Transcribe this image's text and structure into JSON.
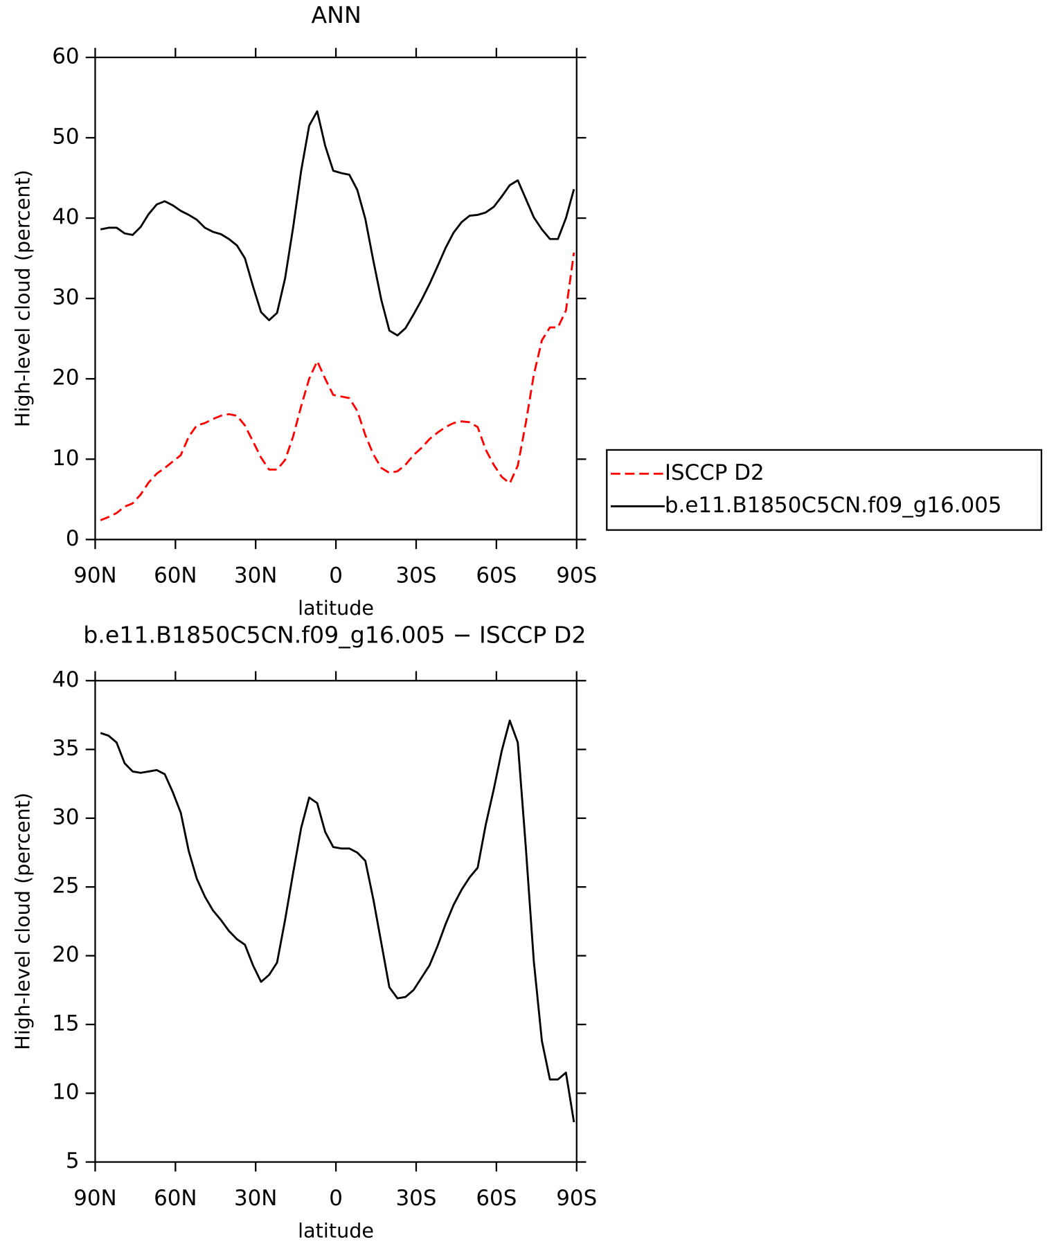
{
  "chart_data": [
    {
      "type": "line",
      "title": "ANN",
      "y_label": "High-level cloud (percent)",
      "x_label": "latitude",
      "x": [
        88,
        85,
        82,
        79,
        76,
        73,
        70,
        67,
        64,
        61,
        58,
        55,
        52,
        49,
        46,
        43,
        40,
        37,
        34,
        31,
        28,
        25,
        22,
        19,
        16,
        13,
        10,
        7,
        4,
        1,
        -2,
        -5,
        -8,
        -11,
        -14,
        -17,
        -20,
        -23,
        -26,
        -29,
        -32,
        -35,
        -38,
        -41,
        -44,
        -47,
        -50,
        -53,
        -56,
        -59,
        -62,
        -65,
        -68,
        -71,
        -74,
        -77,
        -80,
        -83,
        -86,
        -89
      ],
      "series": [
        {
          "name": "ISCCP D2",
          "color": "#ff0000",
          "style": "dashed",
          "values": [
            2.4,
            2.8,
            3.3,
            4.1,
            4.5,
            5.6,
            7.1,
            8.2,
            8.9,
            9.7,
            10.5,
            12.8,
            14.2,
            14.5,
            15.0,
            15.4,
            15.6,
            15.4,
            14.2,
            12.2,
            10.2,
            8.7,
            8.7,
            9.9,
            12.8,
            16.6,
            20.0,
            22.2,
            20.0,
            18.0,
            17.8,
            17.6,
            16.0,
            13.0,
            10.6,
            8.9,
            8.3,
            8.5,
            9.3,
            10.5,
            11.4,
            12.5,
            13.3,
            14.0,
            14.5,
            14.7,
            14.6,
            14.0,
            11.2,
            9.3,
            7.8,
            7.0,
            9.2,
            14.5,
            20.5,
            24.8,
            26.4,
            26.4,
            28.5,
            35.7
          ]
        },
        {
          "name": "b.e11.B1850C5CN.f09_g16.005",
          "color": "#000000",
          "style": "solid",
          "values": [
            38.6,
            38.8,
            38.8,
            38.1,
            37.9,
            38.9,
            40.5,
            41.7,
            42.1,
            41.6,
            40.9,
            40.4,
            39.8,
            38.8,
            38.3,
            38.0,
            37.4,
            36.6,
            35.0,
            31.5,
            28.3,
            27.3,
            28.2,
            32.5,
            38.8,
            45.9,
            51.5,
            53.3,
            49.0,
            45.9,
            45.6,
            45.4,
            43.5,
            39.9,
            34.7,
            29.8,
            26.0,
            25.4,
            26.3,
            28.0,
            29.8,
            31.8,
            34.0,
            36.3,
            38.2,
            39.5,
            40.3,
            40.4,
            40.7,
            41.4,
            42.7,
            44.1,
            44.7,
            42.4,
            40.1,
            38.6,
            37.4,
            37.4,
            40.0,
            43.6
          ]
        }
      ],
      "xlim": [
        90,
        -90
      ],
      "xticks": [
        {
          "value": 90,
          "label": "90N"
        },
        {
          "value": 60,
          "label": "60N"
        },
        {
          "value": 30,
          "label": "30N"
        },
        0,
        {
          "value": -30,
          "label": "30S"
        },
        {
          "value": -60,
          "label": "60S"
        },
        {
          "value": -90,
          "label": "90S"
        }
      ],
      "ylim": [
        0,
        60
      ],
      "yticks": [
        0,
        10,
        20,
        30,
        40,
        50,
        60
      ],
      "legend": "right"
    },
    {
      "type": "line",
      "title": "b.e11.B1850C5CN.f09_g16.005 − ISCCP D2",
      "y_label": "High-level cloud (percent)",
      "x_label": "latitude",
      "x": [
        88,
        85,
        82,
        79,
        76,
        73,
        70,
        67,
        64,
        61,
        58,
        55,
        52,
        49,
        46,
        43,
        40,
        37,
        34,
        31,
        28,
        25,
        22,
        19,
        16,
        13,
        10,
        7,
        4,
        1,
        -2,
        -5,
        -8,
        -11,
        -14,
        -17,
        -20,
        -23,
        -26,
        -29,
        -32,
        -35,
        -38,
        -41,
        -44,
        -47,
        -50,
        -53,
        -56,
        -59,
        -62,
        -65,
        -68,
        -71,
        -74,
        -77,
        -80,
        -83,
        -86,
        -89
      ],
      "color": "#000000",
      "values": [
        36.2,
        36.0,
        35.5,
        34.0,
        33.4,
        33.3,
        33.4,
        33.5,
        33.2,
        31.9,
        30.4,
        27.6,
        25.6,
        24.3,
        23.3,
        22.6,
        21.8,
        21.2,
        20.8,
        19.3,
        18.1,
        18.6,
        19.5,
        22.6,
        26.0,
        29.3,
        31.5,
        31.1,
        29.0,
        27.9,
        27.8,
        27.8,
        27.5,
        26.9,
        24.1,
        20.9,
        17.7,
        16.9,
        17.0,
        17.5,
        18.4,
        19.3,
        20.7,
        22.3,
        23.7,
        24.8,
        25.7,
        26.4,
        29.5,
        32.1,
        34.9,
        37.1,
        35.5,
        27.9,
        19.6,
        13.8,
        11.0,
        11.0,
        11.5,
        7.9
      ],
      "xlim": [
        90,
        -90
      ],
      "xticks": [
        {
          "value": 90,
          "label": "90N"
        },
        {
          "value": 60,
          "label": "60N"
        },
        {
          "value": 30,
          "label": "30N"
        },
        0,
        {
          "value": -30,
          "label": "30S"
        },
        {
          "value": -60,
          "label": "60S"
        },
        {
          "value": -90,
          "label": "90S"
        }
      ],
      "ylim": [
        5,
        40
      ],
      "yticks": [
        5,
        10,
        15,
        20,
        25,
        30,
        35,
        40
      ]
    }
  ]
}
